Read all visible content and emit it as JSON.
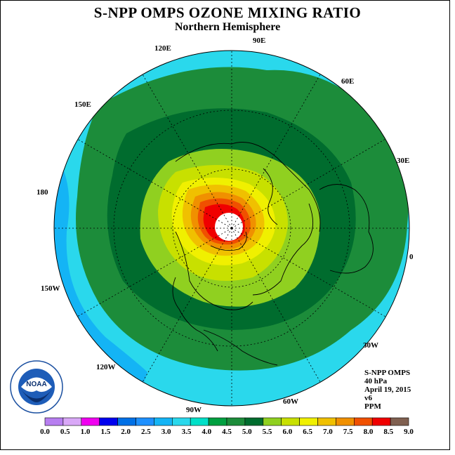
{
  "title": "S-NPP OMPS OZONE MIXING RATIO",
  "subtitle": "Northern Hemisphere",
  "longitude_labels": {
    "lon_90e": "90E",
    "lon_60e": "60E",
    "lon_30e": "30E",
    "lon_0": "0",
    "lon_30w": "30W",
    "lon_60w": "60W",
    "lon_90w": "90W",
    "lon_120w": "120W",
    "lon_150w": "150W",
    "lon_180": "180",
    "lon_150e": "150E",
    "lon_120e": "120E"
  },
  "info": {
    "instrument": "S-NPP OMPS",
    "level": "40 hPa",
    "date": "April 19, 2015",
    "version": "v6",
    "units": "PPM"
  },
  "colorbar": {
    "labels": [
      "0.0",
      "0.5",
      "1.0",
      "1.5",
      "2.0",
      "2.5",
      "3.0",
      "3.5",
      "4.0",
      "4.5",
      "5.0",
      "5.5",
      "6.0",
      "6.5",
      "7.0",
      "7.5",
      "8.0",
      "8.5",
      "9.0"
    ],
    "colors": [
      "#b77ef0",
      "#d9a8f7",
      "#f000f0",
      "#0000ee",
      "#0070e6",
      "#1e90ff",
      "#14b4f5",
      "#2ad8ec",
      "#00e0c8",
      "#00a040",
      "#1c8c3a",
      "#006c2e",
      "#90d020",
      "#c8e000",
      "#f0f000",
      "#f0c000",
      "#f09000",
      "#f05000",
      "#f00000",
      "#806050"
    ]
  },
  "noaa_logo": {
    "text": "NOAA",
    "ring_text": "NATIONAL OCEANIC AND ATMOSPHERIC ADMINISTRATION · U.S. DEPARTMENT OF COMMERCE"
  }
}
